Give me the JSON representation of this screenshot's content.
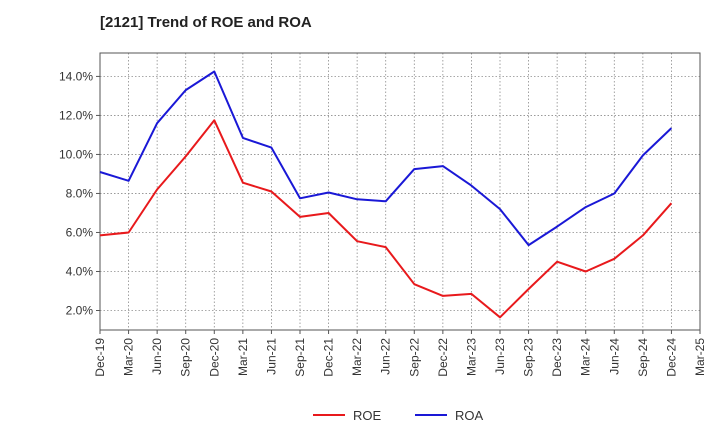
{
  "chart_data": {
    "type": "line",
    "title": "[2121]  Trend of ROE and ROA",
    "xlabel": "",
    "ylabel": "",
    "categories": [
      "Dec-19",
      "Mar-20",
      "Jun-20",
      "Sep-20",
      "Dec-20",
      "Mar-21",
      "Jun-21",
      "Sep-21",
      "Dec-21",
      "Mar-22",
      "Jun-22",
      "Sep-22",
      "Dec-22",
      "Mar-23",
      "Jun-23",
      "Sep-23",
      "Dec-23",
      "Mar-24",
      "Jun-24",
      "Sep-24",
      "Dec-24",
      "Mar-25"
    ],
    "ylim": [
      1.0,
      15.2
    ],
    "yticks": [
      2.0,
      4.0,
      6.0,
      8.0,
      10.0,
      12.0,
      14.0
    ],
    "ytick_labels": [
      "2.0%",
      "4.0%",
      "6.0%",
      "8.0%",
      "10.0%",
      "12.0%",
      "14.0%"
    ],
    "grid": true,
    "legend_position": "bottom-center",
    "series": [
      {
        "name": "ROE",
        "color": "#e8191c",
        "values": [
          5.85,
          6.0,
          8.2,
          9.9,
          11.75,
          8.55,
          8.1,
          6.8,
          7.0,
          5.55,
          5.25,
          3.35,
          2.75,
          2.85,
          1.65,
          3.1,
          4.5,
          4.0,
          4.65,
          5.85,
          7.5,
          null
        ]
      },
      {
        "name": "ROA",
        "color": "#1a18d6",
        "values": [
          9.1,
          8.65,
          11.6,
          13.3,
          14.25,
          10.85,
          10.35,
          7.75,
          8.05,
          7.7,
          7.6,
          9.25,
          9.4,
          8.4,
          7.2,
          5.35,
          6.3,
          7.3,
          8.0,
          9.95,
          11.35,
          null
        ]
      }
    ]
  }
}
